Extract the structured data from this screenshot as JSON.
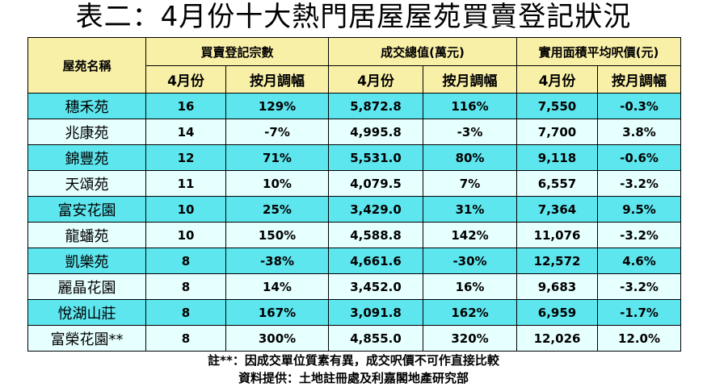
{
  "title": "表二：4月份十大熱門居屋屋苑買賣登記狀況",
  "header": {
    "estate": "屋苑名稱",
    "groups": [
      "買賣登記宗數",
      "成交總值(萬元)",
      "實用面積平均呎價(元)"
    ],
    "subheaders": [
      "4月份",
      "按月調幅",
      "4月份",
      "按月調幅",
      "4月份",
      "按月調幅"
    ]
  },
  "rows": [
    {
      "estate": "穗禾苑",
      "count": "16",
      "count_change": "129%",
      "value": "5,872.8",
      "value_change": "116%",
      "price": "7,550",
      "price_change": "-0.3%"
    },
    {
      "estate": "兆康苑",
      "count": "14",
      "count_change": "-7%",
      "value": "4,995.8",
      "value_change": "-3%",
      "price": "7,700",
      "price_change": "3.8%"
    },
    {
      "estate": "錦豐苑",
      "count": "12",
      "count_change": "71%",
      "value": "5,531.0",
      "value_change": "80%",
      "price": "9,118",
      "price_change": "-0.6%"
    },
    {
      "estate": "天頌苑",
      "count": "11",
      "count_change": "10%",
      "value": "4,079.5",
      "value_change": "7%",
      "price": "6,557",
      "price_change": "-3.2%"
    },
    {
      "estate": "富安花園",
      "count": "10",
      "count_change": "25%",
      "value": "3,429.0",
      "value_change": "31%",
      "price": "7,364",
      "price_change": "9.5%"
    },
    {
      "estate": "龍蟠苑",
      "count": "10",
      "count_change": "150%",
      "value": "4,588.8",
      "value_change": "142%",
      "price": "11,076",
      "price_change": "-3.2%"
    },
    {
      "estate": "凱樂苑",
      "count": "8",
      "count_change": "-38%",
      "value": "4,661.6",
      "value_change": "-30%",
      "price": "12,572",
      "price_change": "4.6%"
    },
    {
      "estate": "麗晶花園",
      "count": "8",
      "count_change": "14%",
      "value": "3,452.0",
      "value_change": "16%",
      "price": "9,683",
      "price_change": "-3.2%"
    },
    {
      "estate": "悅湖山莊",
      "count": "8",
      "count_change": "167%",
      "value": "3,091.8",
      "value_change": "162%",
      "price": "6,959",
      "price_change": "-1.7%"
    },
    {
      "estate": "富榮花園**",
      "count": "8",
      "count_change": "300%",
      "value": "4,855.0",
      "value_change": "320%",
      "price": "12,026",
      "price_change": "12.0%"
    }
  ],
  "notes": {
    "note": "註**：因成交單位質素有異，成交呎價不可作直接比較",
    "source": "資料提供：土地註冊處及利嘉閣地產研究部"
  },
  "colors": {
    "header_bg": "#f9f0a8",
    "row_cyan": "#5ee6ef",
    "row_light": "#e6ffff"
  }
}
